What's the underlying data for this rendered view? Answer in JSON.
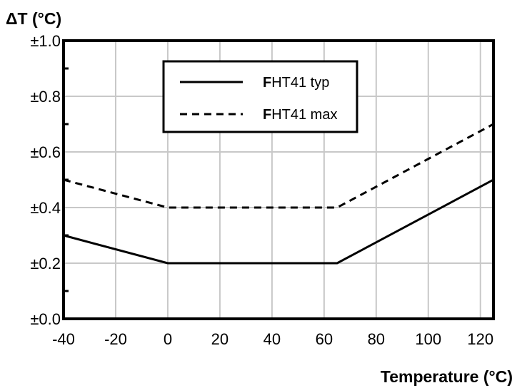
{
  "chart_data": {
    "type": "line",
    "ylabel": "ΔT (°C)",
    "xlabel": "Temperature (°C)",
    "xlim": [
      -40,
      125
    ],
    "ylim": [
      0.0,
      1.0
    ],
    "x_ticks": [
      -40,
      -20,
      0,
      20,
      40,
      60,
      80,
      100,
      120
    ],
    "x_tick_labels": [
      "-40",
      "-20",
      "0",
      "20",
      "40",
      "60",
      "80",
      "100",
      "120"
    ],
    "y_ticks": [
      0.0,
      0.2,
      0.4,
      0.6,
      0.8,
      1.0
    ],
    "y_tick_labels": [
      "±0.0",
      "±0.2",
      "±0.4",
      "±0.6",
      "±0.8",
      "±1.0"
    ],
    "grid": true,
    "legend_position": "top-center",
    "series": [
      {
        "name_prefix": "F",
        "name_rest": "HT41 typ",
        "style": "solid",
        "color": "#000000",
        "points": [
          [
            -40,
            0.3
          ],
          [
            0,
            0.2
          ],
          [
            65,
            0.2
          ],
          [
            125,
            0.5
          ]
        ]
      },
      {
        "name_prefix": "F",
        "name_rest": "HT41 max",
        "style": "dashed",
        "color": "#000000",
        "points": [
          [
            -40,
            0.5
          ],
          [
            0,
            0.4
          ],
          [
            65,
            0.4
          ],
          [
            125,
            0.7
          ]
        ]
      }
    ],
    "grid_color": "#c8c8c8"
  }
}
